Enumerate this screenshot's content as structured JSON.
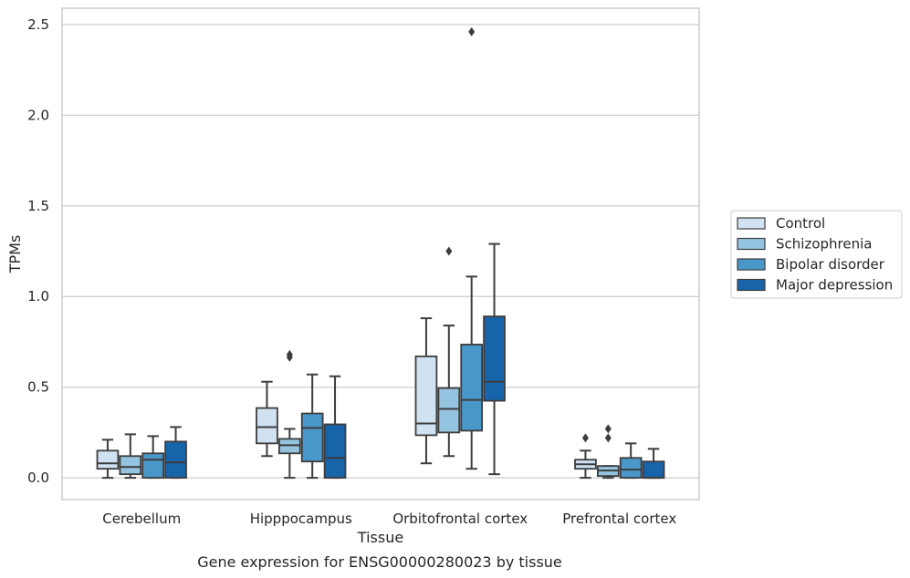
{
  "chart_data": {
    "type": "boxplot",
    "title": "",
    "caption": "Gene expression for ENSG00000280023 by tissue",
    "xlabel": "Tissue",
    "ylabel": "TPMs",
    "ylim": [
      -0.12,
      2.59
    ],
    "yticks": [
      0.0,
      0.5,
      1.0,
      1.5,
      2.0,
      2.5
    ],
    "ytick_labels": [
      "0.0",
      "0.5",
      "1.0",
      "1.5",
      "2.0",
      "2.5"
    ],
    "grid": "horizontal",
    "legend_position": "right",
    "categories": [
      "Cerebellum",
      "Hipppocampus",
      "Orbitofrontal cortex",
      "Prefrontal cortex"
    ],
    "series": [
      {
        "name": "Control",
        "color": "#d0e1f2",
        "boxes": [
          {
            "whislo": 0.0,
            "q1": 0.05,
            "med": 0.08,
            "q3": 0.15,
            "whishi": 0.21,
            "fliers": []
          },
          {
            "whislo": 0.12,
            "q1": 0.19,
            "med": 0.28,
            "q3": 0.385,
            "whishi": 0.53,
            "fliers": []
          },
          {
            "whislo": 0.08,
            "q1": 0.235,
            "med": 0.3,
            "q3": 0.67,
            "whishi": 0.88,
            "fliers": []
          },
          {
            "whislo": 0.0,
            "q1": 0.05,
            "med": 0.075,
            "q3": 0.1,
            "whishi": 0.15,
            "fliers": [
              0.22
            ]
          }
        ]
      },
      {
        "name": "Schizophrenia",
        "color": "#94c4df",
        "boxes": [
          {
            "whislo": 0.0,
            "q1": 0.02,
            "med": 0.06,
            "q3": 0.12,
            "whishi": 0.24,
            "fliers": []
          },
          {
            "whislo": 0.0,
            "q1": 0.135,
            "med": 0.18,
            "q3": 0.215,
            "whishi": 0.27,
            "fliers": [
              0.665,
              0.68
            ]
          },
          {
            "whislo": 0.12,
            "q1": 0.25,
            "med": 0.38,
            "q3": 0.495,
            "whishi": 0.84,
            "fliers": [
              1.25
            ]
          },
          {
            "whislo": 0.0,
            "q1": 0.01,
            "med": 0.04,
            "q3": 0.065,
            "whishi": 0.065,
            "fliers": [
              0.22,
              0.27
            ]
          }
        ]
      },
      {
        "name": "Bipolar disorder",
        "color": "#4a98c9",
        "boxes": [
          {
            "whislo": 0.0,
            "q1": 0.0,
            "med": 0.1,
            "q3": 0.135,
            "whishi": 0.23,
            "fliers": []
          },
          {
            "whislo": 0.0,
            "q1": 0.09,
            "med": 0.275,
            "q3": 0.355,
            "whishi": 0.57,
            "fliers": []
          },
          {
            "whislo": 0.05,
            "q1": 0.26,
            "med": 0.43,
            "q3": 0.735,
            "whishi": 1.11,
            "fliers": [
              2.46
            ]
          },
          {
            "whislo": 0.0,
            "q1": 0.0,
            "med": 0.045,
            "q3": 0.11,
            "whishi": 0.19,
            "fliers": []
          }
        ]
      },
      {
        "name": "Major depression",
        "color": "#1764ab",
        "boxes": [
          {
            "whislo": 0.0,
            "q1": 0.0,
            "med": 0.085,
            "q3": 0.2,
            "whishi": 0.28,
            "fliers": []
          },
          {
            "whislo": 0.0,
            "q1": 0.0,
            "med": 0.11,
            "q3": 0.295,
            "whishi": 0.56,
            "fliers": []
          },
          {
            "whislo": 0.02,
            "q1": 0.425,
            "med": 0.53,
            "q3": 0.89,
            "whishi": 1.29,
            "fliers": []
          },
          {
            "whislo": 0.0,
            "q1": 0.0,
            "med": 0.0,
            "q3": 0.09,
            "whishi": 0.16,
            "fliers": []
          }
        ]
      }
    ]
  }
}
